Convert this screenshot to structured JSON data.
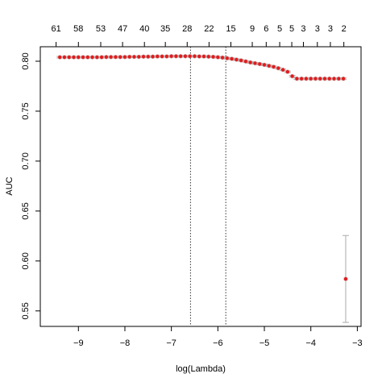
{
  "chart_data": {
    "type": "scatter",
    "xlabel": "log(Lambda)",
    "ylabel": "AUC",
    "xlim": [
      -9.82,
      -2.92
    ],
    "ylim": [
      0.5345,
      0.8145
    ],
    "xticks": [
      {
        "value": -9,
        "label": "−9"
      },
      {
        "value": -8,
        "label": "−8"
      },
      {
        "value": -7,
        "label": "−7"
      },
      {
        "value": -6,
        "label": "−6"
      },
      {
        "value": -5,
        "label": "−5"
      },
      {
        "value": -4,
        "label": "−4"
      },
      {
        "value": -3,
        "label": "−3"
      }
    ],
    "yticks": [
      {
        "value": 0.55,
        "label": "0.55"
      },
      {
        "value": 0.6,
        "label": "0.60"
      },
      {
        "value": 0.65,
        "label": "0.65"
      },
      {
        "value": 0.7,
        "label": "0.70"
      },
      {
        "value": 0.75,
        "label": "0.75"
      },
      {
        "value": 0.8,
        "label": "0.80"
      }
    ],
    "top_ticks": [
      {
        "value": -9.48,
        "label": "61"
      },
      {
        "value": -9.0,
        "label": "58"
      },
      {
        "value": -8.52,
        "label": "53"
      },
      {
        "value": -8.05,
        "label": "47"
      },
      {
        "value": -7.58,
        "label": "40"
      },
      {
        "value": -7.13,
        "label": "35"
      },
      {
        "value": -6.66,
        "label": "28"
      },
      {
        "value": -6.19,
        "label": "22"
      },
      {
        "value": -5.72,
        "label": "15"
      },
      {
        "value": -5.26,
        "label": "9"
      },
      {
        "value": -4.96,
        "label": "6"
      },
      {
        "value": -4.67,
        "label": "5"
      },
      {
        "value": -4.41,
        "label": "5"
      },
      {
        "value": -4.16,
        "label": "3"
      },
      {
        "value": -3.86,
        "label": "3"
      },
      {
        "value": -3.58,
        "label": "3"
      },
      {
        "value": -3.29,
        "label": "2"
      }
    ],
    "vlines": [
      -6.59,
      -5.83
    ],
    "color": "#e41a1c",
    "error_color": "#aaaaaa",
    "x": [
      -9.4,
      -9.3,
      -9.2,
      -9.1,
      -9.0,
      -8.9,
      -8.8,
      -8.7,
      -8.6,
      -8.5,
      -8.4,
      -8.3,
      -8.2,
      -8.1,
      -8.0,
      -7.9,
      -7.8,
      -7.7,
      -7.6,
      -7.5,
      -7.4,
      -7.3,
      -7.2,
      -7.1,
      -7.0,
      -6.9,
      -6.8,
      -6.7,
      -6.6,
      -6.5,
      -6.4,
      -6.3,
      -6.2,
      -6.1,
      -6.0,
      -5.9,
      -5.8,
      -5.7,
      -5.6,
      -5.5,
      -5.4,
      -5.3,
      -5.2,
      -5.1,
      -5.0,
      -4.9,
      -4.8,
      -4.7,
      -4.6,
      -4.5,
      -4.4,
      -4.3,
      -4.2,
      -4.1,
      -4.0,
      -3.9,
      -3.8,
      -3.7,
      -3.6,
      -3.5,
      -3.4,
      -3.3,
      -3.25
    ],
    "values": [
      0.804,
      0.804,
      0.804,
      0.804,
      0.804,
      0.804,
      0.804,
      0.804,
      0.804,
      0.804,
      0.8042,
      0.8042,
      0.8042,
      0.8042,
      0.8042,
      0.8044,
      0.8044,
      0.8044,
      0.8046,
      0.8046,
      0.8046,
      0.8048,
      0.8048,
      0.8048,
      0.805,
      0.805,
      0.805,
      0.805,
      0.805,
      0.805,
      0.8048,
      0.8048,
      0.8046,
      0.8044,
      0.804,
      0.8036,
      0.803,
      0.8024,
      0.8016,
      0.8008,
      0.7998,
      0.7988,
      0.798,
      0.7972,
      0.7964,
      0.7954,
      0.7944,
      0.793,
      0.7914,
      0.7894,
      0.785,
      0.7825,
      0.7825,
      0.7825,
      0.7825,
      0.7825,
      0.7825,
      0.7825,
      0.7825,
      0.7825,
      0.7825,
      0.7825,
      0.582
    ],
    "errors": [
      0.0008,
      0.0008,
      0.0008,
      0.0008,
      0.0008,
      0.0008,
      0.0008,
      0.0008,
      0.0008,
      0.0008,
      0.0008,
      0.0008,
      0.0008,
      0.0008,
      0.0008,
      0.0008,
      0.0008,
      0.0008,
      0.0008,
      0.0008,
      0.0008,
      0.0008,
      0.0008,
      0.0008,
      0.0008,
      0.0008,
      0.0008,
      0.0008,
      0.0008,
      0.0008,
      0.0008,
      0.0008,
      0.0008,
      0.0008,
      0.0008,
      0.0008,
      0.0008,
      0.0008,
      0.0008,
      0.0008,
      0.0008,
      0.0008,
      0.0008,
      0.0008,
      0.0008,
      0.0008,
      0.0008,
      0.0008,
      0.0008,
      0.0008,
      0.0008,
      0.0008,
      0.0008,
      0.0008,
      0.0008,
      0.0008,
      0.0008,
      0.0008,
      0.0008,
      0.0008,
      0.0008,
      0.0008,
      0.0435
    ]
  }
}
